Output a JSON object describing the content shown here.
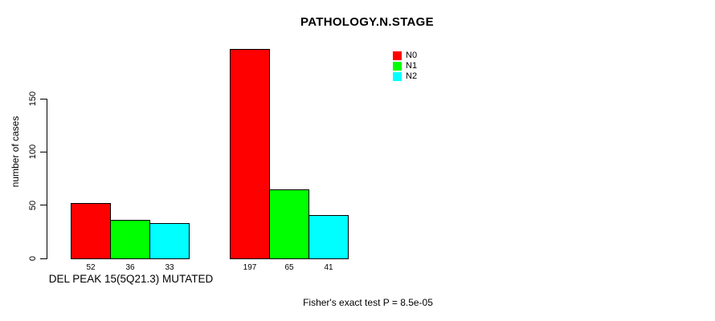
{
  "chart_data": {
    "type": "bar",
    "title": "PATHOLOGY.N.STAGE",
    "ylabel": "number of cases",
    "xlabel": "DEL PEAK 15(5Q21.3) MUTATED",
    "annotation": "Fisher's exact test P = 8.5e-05",
    "categories": [
      "DEL PEAK 15(5Q21.3) MUTATED",
      ""
    ],
    "series": [
      {
        "name": "N0",
        "color": "#ff0000",
        "values": [
          52,
          197
        ]
      },
      {
        "name": "N1",
        "color": "#00ff00",
        "values": [
          36,
          65
        ]
      },
      {
        "name": "N2",
        "color": "#00ffff",
        "values": [
          33,
          41
        ]
      }
    ],
    "yticks": [
      0,
      50,
      100,
      150
    ],
    "ylim": [
      0,
      205
    ],
    "grid": false,
    "legend_position": "top-right",
    "background": "#ffffff",
    "axis_color": "#000000"
  }
}
